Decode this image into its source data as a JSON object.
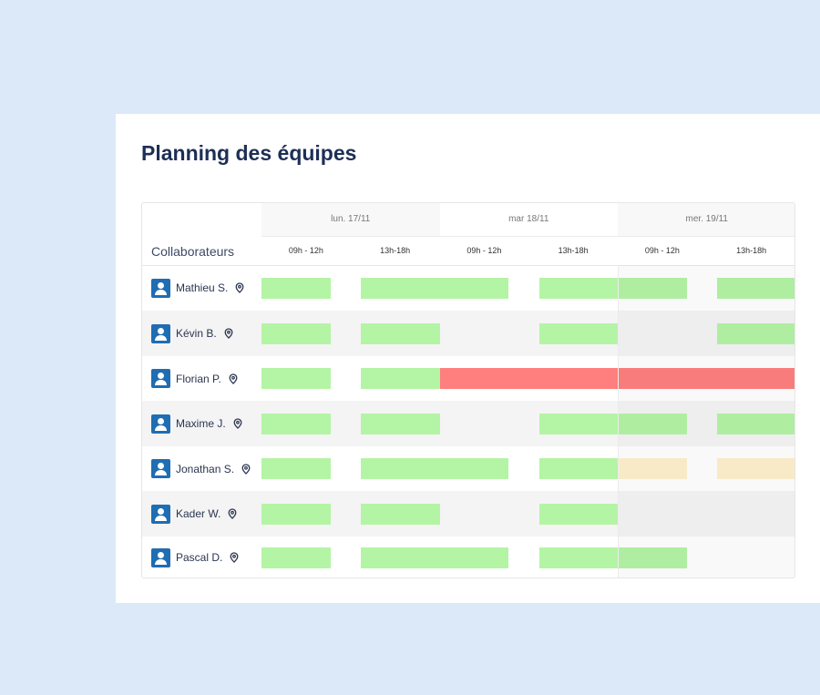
{
  "title": "Planning des équipes",
  "column_header": "Collaborateurs",
  "days": [
    {
      "label": "lun. 17/11",
      "slots": [
        "09h - 12h",
        "13h-18h"
      ]
    },
    {
      "label": "mar 18/11",
      "slots": [
        "09h - 12h",
        "13h-18h"
      ]
    },
    {
      "label": "mer. 19/11",
      "slots": [
        "09h - 12h",
        "13h-18h"
      ]
    }
  ],
  "colors": {
    "ok": "#b4f4a5",
    "absent": "#ff7f7f",
    "pending": "#fff0cc",
    "avatar": "#1f6db3"
  },
  "rows": [
    {
      "name": "Mathieu S.",
      "slots": [
        "ok",
        "ok",
        "ok",
        "ok",
        "ok",
        "ok"
      ]
    },
    {
      "name": "Kévin B.",
      "slots": [
        "ok",
        "ok",
        "none",
        "ok",
        "none",
        "ok"
      ]
    },
    {
      "name": "Florian P.",
      "slots": [
        "ok",
        "ok",
        "absent",
        "absent",
        "absent",
        "absent"
      ]
    },
    {
      "name": "Maxime J.",
      "slots": [
        "ok",
        "ok",
        "none",
        "ok",
        "ok",
        "ok"
      ]
    },
    {
      "name": "Jonathan S.",
      "slots": [
        "ok",
        "ok",
        "ok",
        "ok",
        "pending",
        "pending"
      ]
    },
    {
      "name": "Kader W.",
      "slots": [
        "ok",
        "ok",
        "none",
        "ok",
        "none",
        "none"
      ]
    },
    {
      "name": "Pascal D.",
      "slots": [
        "ok",
        "ok",
        "ok",
        "ok",
        "ok",
        "none"
      ]
    }
  ]
}
